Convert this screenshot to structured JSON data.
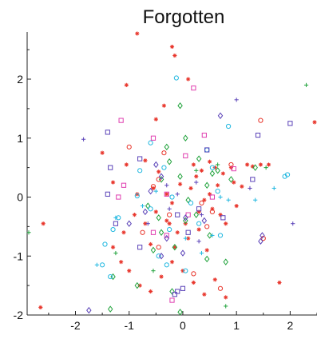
{
  "chart_data": {
    "type": "scatter",
    "title": "Forgotten",
    "xlabel": "",
    "ylabel": "",
    "xlim": [
      -2.9,
      2.5
    ],
    "ylim": [
      -2.0,
      2.8
    ],
    "xticks": [
      -2,
      -1,
      0,
      1,
      2
    ],
    "xtick_labels": [
      "-2",
      "-1",
      "0",
      "1",
      "2"
    ],
    "yticks": [
      -2,
      -1,
      0,
      1,
      2
    ],
    "ytick_labels": [
      "-2",
      "-1",
      "0",
      "1",
      "2"
    ],
    "grid": false,
    "series": [
      {
        "marker": "asterisk",
        "color": "#e8352b",
        "points": [
          [
            -0.85,
            2.78
          ],
          [
            -0.2,
            2.55
          ],
          [
            -0.15,
            2.4
          ],
          [
            -1.05,
            1.9
          ],
          [
            -0.35,
            1.55
          ],
          [
            -0.5,
            1.32
          ],
          [
            0.1,
            2.0
          ],
          [
            -1.5,
            0.75
          ],
          [
            -1.05,
            0.55
          ],
          [
            -0.7,
            0.62
          ],
          [
            -0.45,
            0.43
          ],
          [
            -0.3,
            0.05
          ],
          [
            -0.2,
            -0.1
          ],
          [
            -0.05,
            0.22
          ],
          [
            0.15,
            0.15
          ],
          [
            0.25,
            0.35
          ],
          [
            0.35,
            0.45
          ],
          [
            0.5,
            0.6
          ],
          [
            0.6,
            0.5
          ],
          [
            0.75,
            0.4
          ],
          [
            0.95,
            0.25
          ],
          [
            1.1,
            0.18
          ],
          [
            1.2,
            0.55
          ],
          [
            1.3,
            0.52
          ],
          [
            1.45,
            0.55
          ],
          [
            1.6,
            0.55
          ],
          [
            0.4,
            -0.05
          ],
          [
            0.55,
            -0.2
          ],
          [
            0.7,
            -0.3
          ],
          [
            0.8,
            -0.45
          ],
          [
            0.3,
            -0.55
          ],
          [
            0.1,
            -0.7
          ],
          [
            -0.1,
            -0.6
          ],
          [
            -0.3,
            -0.4
          ],
          [
            -0.5,
            -0.25
          ],
          [
            -0.7,
            -0.45
          ],
          [
            -0.9,
            -0.3
          ],
          [
            -1.1,
            -0.6
          ],
          [
            -1.3,
            -0.85
          ],
          [
            -1.15,
            -1.1
          ],
          [
            -1.0,
            -1.25
          ],
          [
            -0.8,
            -1.5
          ],
          [
            -0.6,
            -1.6
          ],
          [
            -0.4,
            -1.35
          ],
          [
            -0.2,
            -1.1
          ],
          [
            0.0,
            -1.25
          ],
          [
            0.2,
            -1.45
          ],
          [
            0.4,
            -1.65
          ],
          [
            0.6,
            -1.4
          ],
          [
            0.8,
            -1.7
          ],
          [
            -2.65,
            -1.87
          ],
          [
            -2.6,
            -0.45
          ],
          [
            0.3,
            -0.25
          ],
          [
            0.5,
            0.05
          ],
          [
            -0.15,
            -0.85
          ],
          [
            0.2,
            0.55
          ],
          [
            -0.55,
            0.15
          ],
          [
            0.65,
            0.2
          ],
          [
            1.0,
            -0.15
          ],
          [
            -0.25,
            -0.45
          ],
          [
            0.05,
            -0.45
          ],
          [
            0.45,
            -0.9
          ],
          [
            -0.6,
            -0.8
          ],
          [
            -1.3,
            0.25
          ],
          [
            1.8,
            -1.45
          ],
          [
            2.5,
            1.27
          ],
          [
            0.9,
            0.5
          ],
          [
            -0.85,
            0.05
          ]
        ]
      },
      {
        "marker": "diamond",
        "color": "#21a33c",
        "points": [
          [
            -0.05,
            1.55
          ],
          [
            -0.3,
            0.85
          ],
          [
            0.05,
            1.0
          ],
          [
            -0.25,
            0.6
          ],
          [
            -0.4,
            0.3
          ],
          [
            0.3,
            0.65
          ],
          [
            0.45,
            0.2
          ],
          [
            0.65,
            0.45
          ],
          [
            0.9,
            0.3
          ],
          [
            1.35,
            0.5
          ],
          [
            -0.65,
            -0.15
          ],
          [
            -0.4,
            -0.6
          ],
          [
            -0.55,
            -0.9
          ],
          [
            -0.15,
            -0.85
          ],
          [
            0.45,
            -1.05
          ],
          [
            0.8,
            -1.1
          ],
          [
            -1.3,
            -1.35
          ],
          [
            -0.85,
            -1.5
          ],
          [
            -0.2,
            -1.6
          ],
          [
            -0.05,
            -1.95
          ],
          [
            -1.35,
            -1.9
          ],
          [
            0.05,
            -0.4
          ],
          [
            0.5,
            -0.65
          ],
          [
            0.1,
            -0.05
          ],
          [
            0.25,
            -0.3
          ],
          [
            -0.45,
            -0.35
          ],
          [
            -0.05,
            0.35
          ],
          [
            0.55,
            0.4
          ]
        ]
      },
      {
        "marker": "circle",
        "color": "#22b8e0",
        "points": [
          [
            -0.12,
            2.02
          ],
          [
            -0.6,
            0.92
          ],
          [
            0.85,
            1.2
          ],
          [
            -0.8,
            0.45
          ],
          [
            -0.35,
            0.5
          ],
          [
            0.55,
            0.5
          ],
          [
            -0.85,
            0.02
          ],
          [
            -1.2,
            -0.35
          ],
          [
            -1.3,
            -0.55
          ],
          [
            -1.45,
            -0.8
          ],
          [
            -1.5,
            -1.15
          ],
          [
            -1.35,
            -1.35
          ],
          [
            -0.45,
            -1.0
          ],
          [
            -0.3,
            -1.15
          ],
          [
            0.05,
            -1.25
          ],
          [
            -0.2,
            0.0
          ],
          [
            0.15,
            -0.1
          ],
          [
            0.7,
            -0.65
          ],
          [
            1.9,
            0.35
          ],
          [
            1.95,
            0.38
          ],
          [
            -0.6,
            -0.2
          ],
          [
            0.3,
            -0.45
          ],
          [
            -0.25,
            -0.55
          ],
          [
            0.65,
            0.1
          ],
          [
            0.45,
            0.8
          ]
        ]
      },
      {
        "marker": "circle",
        "color": "#e8352b",
        "points": [
          [
            -1.0,
            0.85
          ],
          [
            1.45,
            1.3
          ],
          [
            -0.35,
            0.75
          ],
          [
            0.9,
            0.55
          ],
          [
            -0.45,
            0.3
          ],
          [
            -0.55,
            0.18
          ],
          [
            0.35,
            -0.1
          ],
          [
            -0.75,
            -0.6
          ],
          [
            0.45,
            -0.5
          ],
          [
            -0.45,
            -0.85
          ],
          [
            0.7,
            -1.55
          ],
          [
            0.2,
            -1.3
          ],
          [
            1.5,
            -0.7
          ],
          [
            -0.25,
            -0.3
          ],
          [
            0.55,
            -0.25
          ]
        ]
      },
      {
        "marker": "square",
        "color": "#e03fb0",
        "points": [
          [
            0.2,
            1.85
          ],
          [
            -1.15,
            1.3
          ],
          [
            -0.55,
            1.0
          ],
          [
            0.4,
            1.05
          ],
          [
            0.05,
            0.7
          ],
          [
            0.95,
            0.48
          ],
          [
            -1.1,
            0.2
          ],
          [
            -0.3,
            0.05
          ],
          [
            0.55,
            0.0
          ],
          [
            -0.55,
            -0.6
          ],
          [
            -0.3,
            -0.65
          ],
          [
            -0.2,
            -1.75
          ],
          [
            -1.2,
            0.0
          ],
          [
            0.1,
            -0.3
          ]
        ]
      },
      {
        "marker": "square",
        "color": "#5b43b8",
        "points": [
          [
            1.4,
            1.05
          ],
          [
            0.45,
            0.8
          ],
          [
            2.0,
            1.25
          ],
          [
            -1.4,
            1.1
          ],
          [
            -0.8,
            0.65
          ],
          [
            -1.35,
            0.5
          ],
          [
            -1.4,
            0.05
          ],
          [
            0.3,
            -0.2
          ],
          [
            -0.1,
            -0.3
          ],
          [
            0.75,
            -0.35
          ],
          [
            -1.25,
            -0.45
          ],
          [
            -0.8,
            -0.85
          ],
          [
            0.0,
            -1.55
          ],
          [
            -0.1,
            -1.6
          ],
          [
            -0.15,
            -1.65
          ],
          [
            0.1,
            -0.6
          ],
          [
            1.3,
            0.3
          ]
        ]
      },
      {
        "marker": "diamond",
        "color": "#5b43b8",
        "points": [
          [
            0.7,
            1.38
          ],
          [
            -0.5,
            0.55
          ],
          [
            -0.6,
            0.1
          ],
          [
            -1.0,
            -0.45
          ],
          [
            -0.3,
            -0.7
          ],
          [
            -0.4,
            -1.0
          ],
          [
            0.0,
            -0.95
          ],
          [
            -1.75,
            -1.92
          ],
          [
            1.48,
            -0.65
          ],
          [
            0.05,
            -0.35
          ],
          [
            0.4,
            -0.4
          ],
          [
            -0.7,
            -0.25
          ],
          [
            1.45,
            -0.75
          ],
          [
            -0.4,
            0.35
          ]
        ]
      },
      {
        "marker": "plus",
        "color": "#5b43b8",
        "points": [
          [
            1.0,
            1.65
          ],
          [
            -1.85,
            0.98
          ],
          [
            -0.3,
            0.2
          ],
          [
            0.35,
            -0.3
          ],
          [
            1.25,
            0.15
          ],
          [
            0.3,
            -0.75
          ],
          [
            -0.65,
            -0.45
          ],
          [
            -0.1,
            0.05
          ],
          [
            2.05,
            -0.45
          ],
          [
            0.25,
            0.25
          ],
          [
            -0.25,
            -0.2
          ]
        ]
      },
      {
        "marker": "plus",
        "color": "#22b8e0",
        "points": [
          [
            -1.25,
            -0.35
          ],
          [
            -0.75,
            -0.15
          ],
          [
            0.85,
            -0.05
          ],
          [
            1.35,
            -0.05
          ],
          [
            0.55,
            -0.65
          ],
          [
            0.05,
            -0.7
          ],
          [
            -1.6,
            -1.15
          ],
          [
            0.35,
            -0.95
          ],
          [
            -0.5,
            0.1
          ],
          [
            0.7,
            0.0
          ],
          [
            1.7,
            0.15
          ]
        ]
      },
      {
        "marker": "plus",
        "color": "#21a33c",
        "points": [
          [
            2.3,
            1.9
          ],
          [
            -2.9,
            -0.6
          ],
          [
            0.8,
            -1.85
          ],
          [
            1.55,
            0.5
          ],
          [
            -1.25,
            -0.95
          ],
          [
            0.25,
            0.45
          ],
          [
            -0.55,
            -1.25
          ],
          [
            0.65,
            0.55
          ]
        ]
      }
    ]
  }
}
